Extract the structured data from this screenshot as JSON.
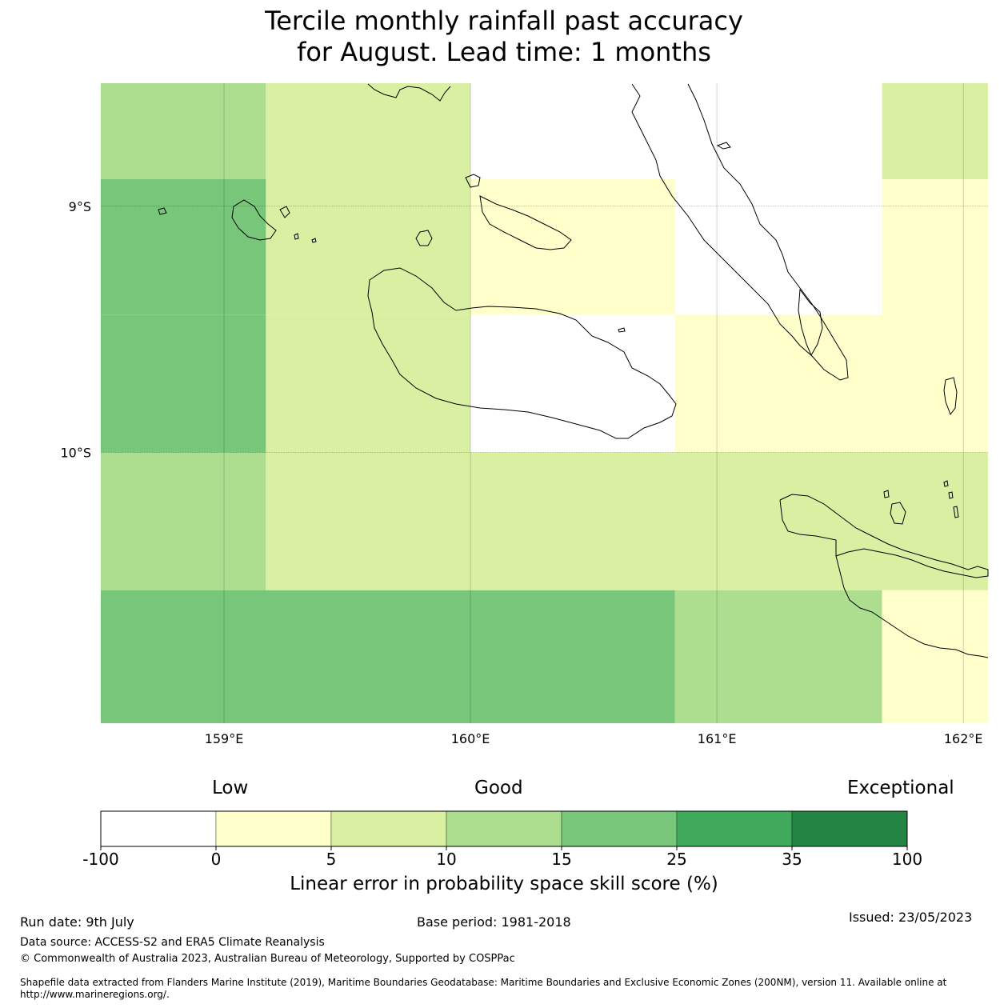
{
  "title": {
    "line1": "Tercile monthly rainfall past accuracy",
    "line2": "for August. Lead time: 1 months"
  },
  "map": {
    "lon_range": [
      158.5,
      162.1
    ],
    "lat_range": [
      -11.1,
      -8.5
    ],
    "lat_labels": [
      {
        "value": -9,
        "label": "9°S"
      },
      {
        "value": -10,
        "label": "10°S"
      }
    ],
    "lon_labels": [
      {
        "value": 159,
        "label": "159°E"
      },
      {
        "value": 160,
        "label": "160°E"
      },
      {
        "value": 161,
        "label": "161°E"
      },
      {
        "value": 162,
        "label": "162°E"
      }
    ],
    "cells": [
      {
        "lon0": 158.5,
        "lon1": 159.17,
        "lat0": -8.5,
        "lat1": -8.89,
        "class": 3
      },
      {
        "lon0": 159.17,
        "lon1": 160.0,
        "lat0": -8.5,
        "lat1": -8.89,
        "class": 2
      },
      {
        "lon0": 160.0,
        "lon1": 161.67,
        "lat0": -8.5,
        "lat1": -8.89,
        "class": 0
      },
      {
        "lon0": 161.67,
        "lon1": 162.1,
        "lat0": -8.5,
        "lat1": -8.89,
        "class": 2
      },
      {
        "lon0": 158.5,
        "lon1": 159.17,
        "lat0": -8.89,
        "lat1": -9.44,
        "class": 4
      },
      {
        "lon0": 159.17,
        "lon1": 160.0,
        "lat0": -8.89,
        "lat1": -9.44,
        "class": 2
      },
      {
        "lon0": 160.0,
        "lon1": 160.83,
        "lat0": -8.89,
        "lat1": -9.44,
        "class": 1
      },
      {
        "lon0": 160.83,
        "lon1": 161.67,
        "lat0": -8.89,
        "lat1": -9.44,
        "class": 0
      },
      {
        "lon0": 161.67,
        "lon1": 162.1,
        "lat0": -8.89,
        "lat1": -9.44,
        "class": 1
      },
      {
        "lon0": 158.5,
        "lon1": 159.17,
        "lat0": -9.44,
        "lat1": -10.0,
        "class": 4
      },
      {
        "lon0": 159.17,
        "lon1": 160.0,
        "lat0": -9.44,
        "lat1": -10.0,
        "class": 2
      },
      {
        "lon0": 160.0,
        "lon1": 160.83,
        "lat0": -9.44,
        "lat1": -10.0,
        "class": 0
      },
      {
        "lon0": 160.83,
        "lon1": 162.1,
        "lat0": -9.44,
        "lat1": -10.0,
        "class": 1
      },
      {
        "lon0": 158.5,
        "lon1": 159.17,
        "lat0": -10.0,
        "lat1": -10.56,
        "class": 3
      },
      {
        "lon0": 159.17,
        "lon1": 162.1,
        "lat0": -10.0,
        "lat1": -10.56,
        "class": 2
      },
      {
        "lon0": 158.5,
        "lon1": 160.83,
        "lat0": -10.56,
        "lat1": -11.1,
        "class": 4
      },
      {
        "lon0": 160.83,
        "lon1": 161.67,
        "lat0": -10.56,
        "lat1": -11.1,
        "class": 3
      },
      {
        "lon0": 161.67,
        "lon1": 162.1,
        "lat0": -10.56,
        "lat1": -11.1,
        "class": 1
      }
    ]
  },
  "colorbar": {
    "categories": [
      "Low",
      "Good",
      "Exceptional"
    ],
    "colors": [
      "#ffffff",
      "#ffffcc",
      "#d9f0a3",
      "#addd8e",
      "#78c679",
      "#41ab5d",
      "#238443"
    ],
    "ticks": [
      "-100",
      "0",
      "5",
      "10",
      "15",
      "25",
      "35",
      "100"
    ],
    "label": "Linear error in probability space skill score (%)"
  },
  "footer": {
    "run_date": "Run date: 9th July",
    "base_period": "Base period: 1981-2018",
    "issued": "Issued: 23/05/2023",
    "data_source": "Data source: ACCESS-S2 and ERA5 Climate Reanalysis",
    "copyright": "© Commonwealth of Australia 2023, Australian Bureau of Meteorology, Supported by COSPPac",
    "shapefile_line1": "Shapefile data extracted from Flanders Marine Institute (2019), Maritime Boundaries Geodatabase: Maritime Boundaries and Exclusive Economic Zones (200NM), version 11. Available online at",
    "shapefile_line2": "http://www.marineregions.org/."
  }
}
